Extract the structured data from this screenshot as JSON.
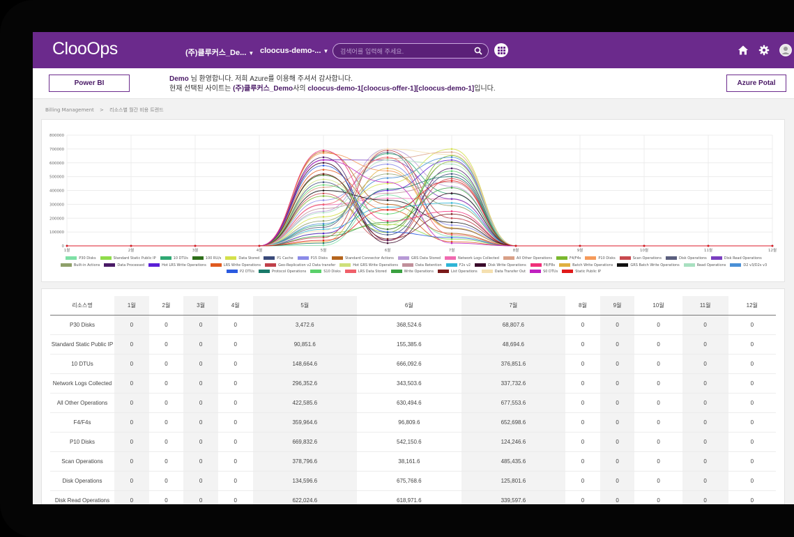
{
  "header": {
    "logo": "ClooOps",
    "company_select": "(주)클루커스_De...",
    "site_select": "cloocus-demo-...",
    "search_placeholder": "검색어를 입력해 주세요."
  },
  "welcome": {
    "powerbi_button": "Power BI",
    "azure_button": "Azure Potal",
    "line1_user": "Demo",
    "line1_text": " 님 환영합니다. 저희 Azure를 이용해 주셔서 감사합니다.",
    "line2_prefix": "현재 선택된 사이트는 ",
    "line2_company": "(주)클루커스_Demo",
    "line2_mid": "사의 ",
    "line2_site": "cloocus-demo-1[cloocus-offer-1][cloocus-demo-1]",
    "line2_suffix": "입니다."
  },
  "breadcrumb": {
    "root": "Billing Management",
    "separator": ">",
    "current": "리소스별 월간 비용 트렌드"
  },
  "chart_data": {
    "type": "line",
    "categories": [
      "1월",
      "2월",
      "3월",
      "4월",
      "5월",
      "6월",
      "7월",
      "8월",
      "9월",
      "10월",
      "11월",
      "12월"
    ],
    "yticks": [
      "0",
      "100000",
      "200000",
      "300000",
      "400000",
      "500000",
      "600000",
      "700000",
      "800000"
    ],
    "ylim": [
      0,
      800000
    ],
    "series": [
      {
        "name": "P30 Disks",
        "color": "#7ee0a6",
        "values": [
          0,
          0,
          0,
          0,
          3472.6,
          368524.6,
          68807.6,
          0,
          0,
          0,
          0,
          0
        ]
      },
      {
        "name": "Standard Static Public IP",
        "color": "#8fdc4a",
        "values": [
          0,
          0,
          0,
          0,
          90851.6,
          155385.6,
          48694.6,
          0,
          0,
          0,
          0,
          0
        ]
      },
      {
        "name": "10 DTUs",
        "color": "#2fa873",
        "values": [
          0,
          0,
          0,
          0,
          148664.6,
          666092.6,
          376851.6,
          0,
          0,
          0,
          0,
          0
        ]
      },
      {
        "name": "100 RU/s",
        "color": "#2e6f1a",
        "values": [
          0,
          0,
          0,
          0,
          512000,
          120000,
          610000,
          0,
          0,
          0,
          0,
          0
        ]
      },
      {
        "name": "Data Stored",
        "color": "#d4e04a",
        "values": [
          0,
          0,
          0,
          0,
          210000,
          450000,
          700000,
          0,
          0,
          0,
          0,
          0
        ]
      },
      {
        "name": "P1 Cache",
        "color": "#3a4a7a",
        "values": [
          0,
          0,
          0,
          0,
          460000,
          80000,
          520000,
          0,
          0,
          0,
          0,
          0
        ]
      },
      {
        "name": "P15 Disks",
        "color": "#8b8be8",
        "values": [
          0,
          0,
          0,
          0,
          330000,
          590000,
          150000,
          0,
          0,
          0,
          0,
          0
        ]
      },
      {
        "name": "Standard Connector Actions",
        "color": "#b5651d",
        "values": [
          0,
          0,
          0,
          0,
          680000,
          300000,
          90000,
          0,
          0,
          0,
          0,
          0
        ]
      },
      {
        "name": "GRS Data Stored",
        "color": "#b79ad6",
        "values": [
          0,
          0,
          0,
          0,
          250000,
          700000,
          430000,
          0,
          0,
          0,
          0,
          0
        ]
      },
      {
        "name": "Network Logs Collected",
        "color": "#f06ab0",
        "values": [
          0,
          0,
          0,
          0,
          296352.6,
          343503.6,
          337732.6,
          0,
          0,
          0,
          0,
          0
        ]
      },
      {
        "name": "All Other Operations",
        "color": "#d9a087",
        "values": [
          0,
          0,
          0,
          0,
          422585.6,
          630494.6,
          677553.6,
          0,
          0,
          0,
          0,
          0
        ]
      },
      {
        "name": "F4/F4s",
        "color": "#7ab82e",
        "values": [
          0,
          0,
          0,
          0,
          359964.6,
          96809.6,
          652698.6,
          0,
          0,
          0,
          0,
          0
        ]
      },
      {
        "name": "P10 Disks",
        "color": "#f59a5a",
        "values": [
          0,
          0,
          0,
          0,
          669832.6,
          542150.6,
          124246.6,
          0,
          0,
          0,
          0,
          0
        ]
      },
      {
        "name": "Scan Operations",
        "color": "#c8494e",
        "values": [
          0,
          0,
          0,
          0,
          378796.6,
          38161.6,
          485435.6,
          0,
          0,
          0,
          0,
          0
        ]
      },
      {
        "name": "Disk Operations",
        "color": "#5b5f7e",
        "values": [
          0,
          0,
          0,
          0,
          134596.6,
          675768.6,
          125801.6,
          0,
          0,
          0,
          0,
          0
        ]
      },
      {
        "name": "Disk Read Operations",
        "color": "#7a3fc0",
        "values": [
          0,
          0,
          0,
          0,
          622024.6,
          618971.6,
          339597.6,
          0,
          0,
          0,
          0,
          0
        ]
      },
      {
        "name": "Built-in Actions",
        "color": "#8fa06a",
        "values": [
          0,
          0,
          0,
          0,
          180000,
          520000,
          290000,
          0,
          0,
          0,
          0,
          0
        ]
      },
      {
        "name": "Data Processed",
        "color": "#4a1a66",
        "values": [
          0,
          0,
          0,
          0,
          640000,
          40000,
          560000,
          0,
          0,
          0,
          0,
          0
        ]
      },
      {
        "name": "Hot LRS Write Operations",
        "color": "#5a1fd6",
        "values": [
          0,
          0,
          0,
          0,
          90000,
          400000,
          620000,
          0,
          0,
          0,
          0,
          0
        ]
      },
      {
        "name": "LRS Write Operations",
        "color": "#e05a1f",
        "values": [
          0,
          0,
          0,
          0,
          550000,
          260000,
          30000,
          0,
          0,
          0,
          0,
          0
        ]
      },
      {
        "name": "Geo-Replication v2 Data transfer",
        "color": "#c0404a",
        "values": [
          0,
          0,
          0,
          0,
          60000,
          690000,
          200000,
          0,
          0,
          0,
          0,
          0
        ]
      },
      {
        "name": "Hot GRS Write Operations",
        "color": "#cfe07a",
        "values": [
          0,
          0,
          0,
          0,
          480000,
          150000,
          610000,
          0,
          0,
          0,
          0,
          0
        ]
      },
      {
        "name": "Data Retention",
        "color": "#c0909a",
        "values": [
          0,
          0,
          0,
          0,
          270000,
          380000,
          460000,
          0,
          0,
          0,
          0,
          0
        ]
      },
      {
        "name": "F2s v2",
        "color": "#2fb5d6",
        "values": [
          0,
          0,
          0,
          0,
          120000,
          280000,
          310000,
          0,
          0,
          0,
          0,
          0
        ]
      },
      {
        "name": "Disk Write Operations",
        "color": "#3a0a2a",
        "values": [
          0,
          0,
          0,
          0,
          600000,
          20000,
          380000,
          0,
          0,
          0,
          0,
          0
        ]
      },
      {
        "name": "F8/F8s",
        "color": "#f0307a",
        "values": [
          0,
          0,
          0,
          0,
          690000,
          180000,
          250000,
          0,
          0,
          0,
          0,
          0
        ]
      },
      {
        "name": "Batch Write Operations",
        "color": "#e0b040",
        "values": [
          0,
          0,
          0,
          0,
          30000,
          560000,
          130000,
          0,
          0,
          0,
          0,
          0
        ]
      },
      {
        "name": "GRS Batch Write Operations",
        "color": "#111111",
        "values": [
          0,
          0,
          0,
          0,
          400000,
          330000,
          170000,
          0,
          0,
          0,
          0,
          0
        ]
      },
      {
        "name": "Read Operations",
        "color": "#a8e0c0",
        "values": [
          0,
          0,
          0,
          0,
          240000,
          620000,
          590000,
          0,
          0,
          0,
          0,
          0
        ]
      },
      {
        "name": "D2 v3/D2s v3",
        "color": "#4a90d6",
        "values": [
          0,
          0,
          0,
          0,
          160000,
          490000,
          640000,
          0,
          0,
          0,
          0,
          0
        ]
      },
      {
        "name": "P2 DTUs",
        "color": "#2a5ae0",
        "values": [
          0,
          0,
          0,
          0,
          580000,
          100000,
          60000,
          0,
          0,
          0,
          0,
          0
        ]
      },
      {
        "name": "Protocol Operations",
        "color": "#1a7a6a",
        "values": [
          0,
          0,
          0,
          0,
          20000,
          410000,
          500000,
          0,
          0,
          0,
          0,
          0
        ]
      },
      {
        "name": "S10 Disks",
        "color": "#5ad06a",
        "values": [
          0,
          0,
          0,
          0,
          440000,
          230000,
          540000,
          0,
          0,
          0,
          0,
          0
        ]
      },
      {
        "name": "LRS Data Stored",
        "color": "#f0606a",
        "values": [
          0,
          0,
          0,
          0,
          300000,
          640000,
          80000,
          0,
          0,
          0,
          0,
          0
        ]
      },
      {
        "name": "Write Operations",
        "color": "#3aa040",
        "values": [
          0,
          0,
          0,
          0,
          70000,
          170000,
          420000,
          0,
          0,
          0,
          0,
          0
        ]
      },
      {
        "name": "List Operations",
        "color": "#7a1a1a",
        "values": [
          0,
          0,
          0,
          0,
          520000,
          50000,
          230000,
          0,
          0,
          0,
          0,
          0
        ]
      },
      {
        "name": "Data Transfer Out",
        "color": "#f5e0b0",
        "values": [
          0,
          0,
          0,
          0,
          110000,
          700000,
          660000,
          0,
          0,
          0,
          0,
          0
        ]
      },
      {
        "name": "S0 DTUs",
        "color": "#c020c0",
        "values": [
          0,
          0,
          0,
          0,
          620000,
          460000,
          20000,
          0,
          0,
          0,
          0,
          0
        ]
      },
      {
        "name": "Static Public IP",
        "color": "#e01a1a",
        "values": [
          0,
          0,
          0,
          0,
          40000,
          260000,
          470000,
          0,
          0,
          0,
          0,
          0
        ]
      }
    ]
  },
  "table": {
    "header_first": "리소스명",
    "months": [
      "1월",
      "2월",
      "3월",
      "4월",
      "5월",
      "6월",
      "7월",
      "8월",
      "9월",
      "10월",
      "11월",
      "12월"
    ],
    "rows": [
      {
        "name": "P30 Disks",
        "values": [
          "0",
          "0",
          "0",
          "0",
          "3,472.6",
          "368,524.6",
          "68,807.6",
          "0",
          "0",
          "0",
          "0",
          "0"
        ]
      },
      {
        "name": "Standard Static Public IP",
        "values": [
          "0",
          "0",
          "0",
          "0",
          "90,851.6",
          "155,385.6",
          "48,694.6",
          "0",
          "0",
          "0",
          "0",
          "0"
        ]
      },
      {
        "name": "10 DTUs",
        "values": [
          "0",
          "0",
          "0",
          "0",
          "148,664.6",
          "666,092.6",
          "376,851.6",
          "0",
          "0",
          "0",
          "0",
          "0"
        ]
      },
      {
        "name": "Network Logs Collected",
        "values": [
          "0",
          "0",
          "0",
          "0",
          "296,352.6",
          "343,503.6",
          "337,732.6",
          "0",
          "0",
          "0",
          "0",
          "0"
        ]
      },
      {
        "name": "All Other Operations",
        "values": [
          "0",
          "0",
          "0",
          "0",
          "422,585.6",
          "630,494.6",
          "677,553.6",
          "0",
          "0",
          "0",
          "0",
          "0"
        ]
      },
      {
        "name": "F4/F4s",
        "values": [
          "0",
          "0",
          "0",
          "0",
          "359,964.6",
          "96,809.6",
          "652,698.6",
          "0",
          "0",
          "0",
          "0",
          "0"
        ]
      },
      {
        "name": "P10 Disks",
        "values": [
          "0",
          "0",
          "0",
          "0",
          "669,832.6",
          "542,150.6",
          "124,246.6",
          "0",
          "0",
          "0",
          "0",
          "0"
        ]
      },
      {
        "name": "Scan Operations",
        "values": [
          "0",
          "0",
          "0",
          "0",
          "378,796.6",
          "38,161.6",
          "485,435.6",
          "0",
          "0",
          "0",
          "0",
          "0"
        ]
      },
      {
        "name": "Disk Operations",
        "values": [
          "0",
          "0",
          "0",
          "0",
          "134,596.6",
          "675,768.6",
          "125,801.6",
          "0",
          "0",
          "0",
          "0",
          "0"
        ]
      },
      {
        "name": "Disk Read Operations",
        "values": [
          "0",
          "0",
          "0",
          "0",
          "622,024.6",
          "618,971.6",
          "339,597.6",
          "0",
          "0",
          "0",
          "0",
          "0"
        ]
      }
    ]
  },
  "colors": {
    "brand": "#6b2a8c",
    "accent_text": "#4a1a66"
  },
  "icons": {
    "search": "search-icon",
    "apps": "apps-grid-icon",
    "home": "home-icon",
    "settings": "gear-icon",
    "user": "user-avatar-icon"
  }
}
